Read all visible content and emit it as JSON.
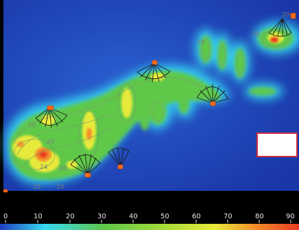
{
  "scale": {
    "ticks": [
      "0",
      "10",
      "20",
      "30",
      "40",
      "50",
      "60",
      "70",
      "80",
      "90"
    ]
  },
  "contour_labels": [
    "20",
    "20",
    "20",
    "20",
    "20",
    "20",
    "24",
    "10",
    "10"
  ],
  "colors": {
    "background": "#1e3fb0",
    "cyan": "#36d8f2",
    "green": "#5ec84a",
    "yellow": "#e8ea3a",
    "orange": "#f58a2a",
    "red": "#e83a22",
    "marker": "#ff6a1a",
    "legend_border": "#d0303a"
  },
  "legend_box": {
    "label": ""
  }
}
